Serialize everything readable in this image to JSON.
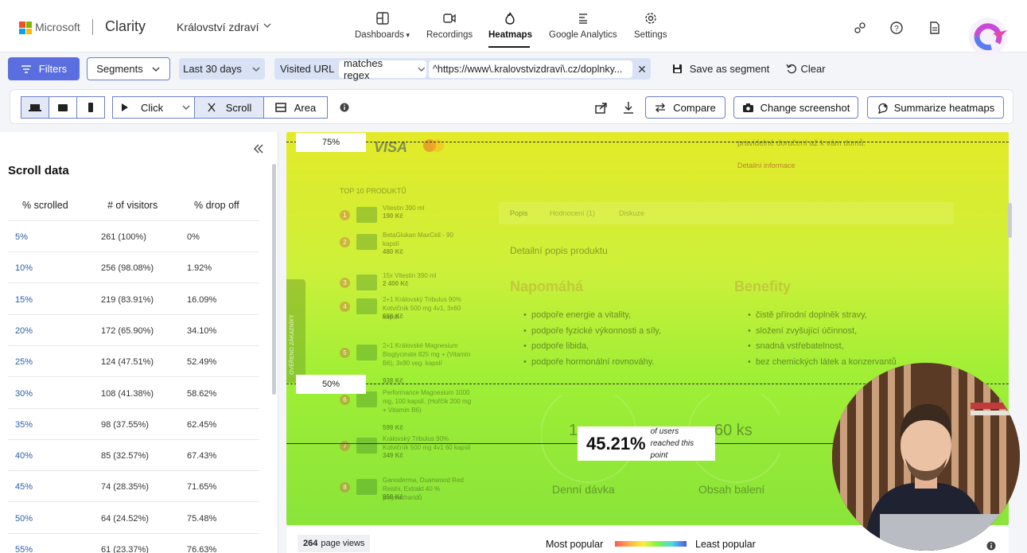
{
  "header": {
    "brand": "Microsoft",
    "product": "Clarity",
    "project": "Království zdraví",
    "nav": [
      {
        "label": "Dashboards",
        "icon": "dashboards-icon",
        "active": false
      },
      {
        "label": "Recordings",
        "icon": "recordings-icon",
        "active": false
      },
      {
        "label": "Heatmaps",
        "icon": "heatmaps-icon",
        "active": true
      },
      {
        "label": "Google Analytics",
        "icon": "google-analytics-icon",
        "active": false
      },
      {
        "label": "Settings",
        "icon": "settings-icon",
        "active": false
      }
    ]
  },
  "filters": {
    "filters_label": "Filters",
    "segments_label": "Segments",
    "date_range": "Last 30 days",
    "visited_url_label": "Visited URL",
    "operator": "matches regex",
    "url_value": "^https://www\\.kralovstvizdravi\\.cz/doplnky...",
    "save_segment_label": "Save as segment",
    "clear_label": "Clear"
  },
  "toolbar": {
    "click_label": "Click",
    "scroll_label": "Scroll",
    "area_label": "Area",
    "compare_label": "Compare",
    "change_screenshot_label": "Change screenshot",
    "summarize_label": "Summarize heatmaps"
  },
  "scroll_panel": {
    "title": "Scroll data",
    "columns": [
      "% scrolled",
      "# of visitors",
      "% drop off"
    ],
    "rows": [
      {
        "pct": "5%",
        "visitors": "261 (100%)",
        "drop": "0%"
      },
      {
        "pct": "10%",
        "visitors": "256 (98.08%)",
        "drop": "1.92%"
      },
      {
        "pct": "15%",
        "visitors": "219 (83.91%)",
        "drop": "16.09%"
      },
      {
        "pct": "20%",
        "visitors": "172 (65.90%)",
        "drop": "34.10%"
      },
      {
        "pct": "25%",
        "visitors": "124 (47.51%)",
        "drop": "52.49%"
      },
      {
        "pct": "30%",
        "visitors": "108 (41.38%)",
        "drop": "58.62%"
      },
      {
        "pct": "35%",
        "visitors": "98 (37.55%)",
        "drop": "62.45%"
      },
      {
        "pct": "40%",
        "visitors": "85 (32.57%)",
        "drop": "67.43%"
      },
      {
        "pct": "45%",
        "visitors": "74 (28.35%)",
        "drop": "71.65%"
      },
      {
        "pct": "50%",
        "visitors": "64 (24.52%)",
        "drop": "75.48%"
      },
      {
        "pct": "55%",
        "visitors": "61 (23.37%)",
        "drop": "76.63%"
      }
    ]
  },
  "heatmap": {
    "marker_75": "75%",
    "marker_50": "50%",
    "tooltip_value": "45.21%",
    "tooltip_text": "of users reached this point",
    "page": {
      "visa": "VISA",
      "delivery": "pravidelné doručení až k vám domů.",
      "details": "Detailní informace",
      "top10": "TOP 10 PRODUKTŮ",
      "tabs": [
        "Popis",
        "Hodnocení (1)",
        "Diskuze"
      ],
      "desc_title": "Detailní popis produktu",
      "napomaha": "Napomáhá",
      "benefity": "Benefity",
      "napomaha_items": [
        "podpoře energie a vitality,",
        "podpoře fyzické výkonnosti a síly,",
        "podpoře libida,",
        "podpoře hormonální rovnováhy."
      ],
      "benefity_items": [
        "čistě přírodní doplněk stravy,",
        "složení zvyšující účinnost,",
        "snadná vstřebatelnost,",
        "bez chemických látek a konzervantů"
      ],
      "products": [
        {
          "n": "1",
          "name": "Vitestin 390 ml",
          "price": "190 Kč"
        },
        {
          "n": "2",
          "name": "BetaGlukan MaxCell - 90 kapslí",
          "price": "480 Kč"
        },
        {
          "n": "3",
          "name": "15x Vitestin 390 ml",
          "price": "2 400 Kč"
        },
        {
          "n": "4",
          "name": "2+1 Královský Tribulus 90% Kotvičník 500 mg 4v1, 3x60 kapslí",
          "price": "698 Kč"
        },
        {
          "n": "5",
          "name": "2+1 Královské Magnesium Bisglycinate 825 mg + (Vitamín B6), 3x90 veg. kapslí",
          "price": "938 Kč"
        },
        {
          "n": "6",
          "name": "Performance Magnesium 1000 mg, 100 kapslí, (Hořčík 200 mg + Vitamín B6)",
          "price": "599 Kč"
        },
        {
          "n": "7",
          "name": "Královský Tribulus 90% Kotvičník 500 mg 4v1 60 kapslí",
          "price": "349 Kč"
        },
        {
          "n": "8",
          "name": "Ganoderma, Duanwood Red Reishi, Extrakt 40 % polysacharidů",
          "price": "950 Kč"
        }
      ],
      "daily_dose": "Denní dávka",
      "pack_content": "Obsah balení",
      "big_left": "1",
      "big_right": "60 ks",
      "vertical_tab": "OVĚŘENO ZÁKAZNÍKY"
    }
  },
  "footer": {
    "page_views_count": "264",
    "page_views_label": "page views",
    "most_popular": "Most popular",
    "least_popular": "Least popular"
  }
}
